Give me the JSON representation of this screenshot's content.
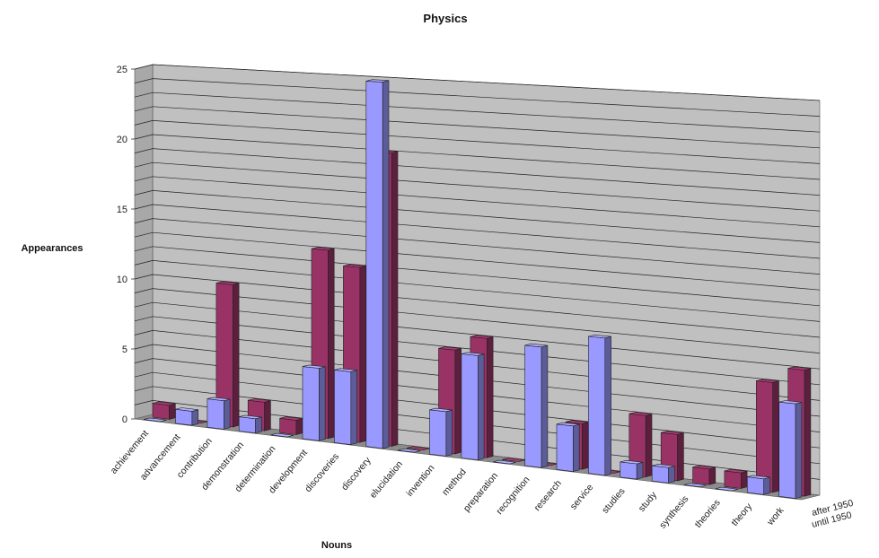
{
  "chart_data": {
    "type": "bar",
    "title": "Physics",
    "xlabel": "Nouns",
    "ylabel": "Appearances",
    "ylim": [
      0,
      25
    ],
    "yticks": [
      "0",
      "5",
      "10",
      "15",
      "20",
      "25"
    ],
    "categories": [
      "achievement",
      "advancement",
      "contribution",
      "demonstration",
      "determination",
      "development",
      "discoveries",
      "discovery",
      "elucidation",
      "invention",
      "method",
      "preparation",
      "recognition",
      "research",
      "service",
      "studies",
      "study",
      "synthesis",
      "theories",
      "theory",
      "work"
    ],
    "series": [
      {
        "name": "until 1950",
        "color": "#9999ff",
        "values": [
          0,
          1,
          2,
          1,
          0,
          5,
          5,
          25,
          0,
          3,
          7,
          0,
          8,
          3,
          9,
          1,
          1,
          0,
          0,
          1,
          6
        ]
      },
      {
        "name": "after 1950",
        "color": "#993366",
        "values": [
          1,
          0,
          10,
          2,
          1,
          13,
          12,
          20,
          0,
          7,
          8,
          0,
          0,
          3,
          0,
          4,
          3,
          1,
          1,
          7,
          8
        ]
      }
    ],
    "grid": true,
    "legend": "depth-axis labels at right"
  }
}
